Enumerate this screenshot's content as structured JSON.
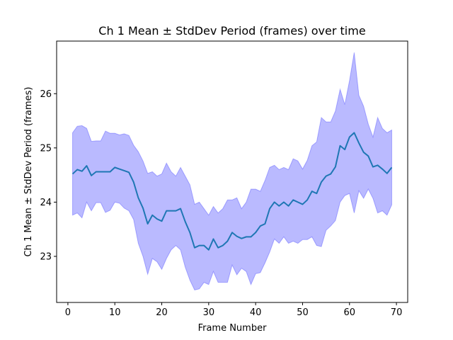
{
  "chart_data": {
    "type": "line",
    "title": "Ch 1 Mean ± StdDev Period (frames) over time",
    "xlabel": "Frame Number",
    "ylabel": "Ch 1 Mean ± StdDev Period (frames)",
    "xlim": [
      -2.4,
      72.4
    ],
    "ylim": [
      22.15,
      26.97
    ],
    "xticks": [
      0,
      10,
      20,
      30,
      40,
      50,
      60,
      70
    ],
    "yticks": [
      23,
      24,
      25,
      26
    ],
    "grid": false,
    "legend": "none",
    "colors": {
      "mean_line": "#1f77b4",
      "band_fill": "#0000ff",
      "band_opacity": 0.27
    },
    "x": [
      1,
      2,
      3,
      4,
      5,
      6,
      7,
      8,
      9,
      10,
      11,
      12,
      13,
      14,
      15,
      16,
      17,
      18,
      19,
      20,
      21,
      22,
      23,
      24,
      25,
      26,
      27,
      28,
      29,
      30,
      31,
      32,
      33,
      34,
      35,
      36,
      37,
      38,
      39,
      40,
      41,
      42,
      43,
      44,
      45,
      46,
      47,
      48,
      49,
      50,
      51,
      52,
      53,
      54,
      55,
      56,
      57,
      58,
      59,
      60,
      61,
      62,
      63,
      64,
      65,
      66,
      67,
      68,
      69
    ],
    "series": [
      {
        "role": "mean",
        "values": [
          24.52,
          24.6,
          24.57,
          24.67,
          24.49,
          24.56,
          24.56,
          24.56,
          24.56,
          24.64,
          24.61,
          24.58,
          24.55,
          24.37,
          24.08,
          23.89,
          23.6,
          23.76,
          23.69,
          23.65,
          23.84,
          23.84,
          23.84,
          23.88,
          23.64,
          23.44,
          23.16,
          23.2,
          23.2,
          23.12,
          23.32,
          23.16,
          23.2,
          23.28,
          23.44,
          23.37,
          23.33,
          23.36,
          23.36,
          23.44,
          23.56,
          23.6,
          23.88,
          24.0,
          23.93,
          24.0,
          23.93,
          24.04,
          24.0,
          23.96,
          24.04,
          24.2,
          24.16,
          24.37,
          24.48,
          24.52,
          24.65,
          25.04,
          24.97,
          25.2,
          25.28,
          25.09,
          24.92,
          24.85,
          24.65,
          24.68,
          24.61,
          24.53,
          24.64
        ]
      },
      {
        "role": "upper",
        "values": [
          25.28,
          25.4,
          25.41,
          25.36,
          25.12,
          25.13,
          25.13,
          25.31,
          25.27,
          25.27,
          25.24,
          25.26,
          25.23,
          25.05,
          24.93,
          24.76,
          24.53,
          24.56,
          24.48,
          24.52,
          24.72,
          24.56,
          24.48,
          24.64,
          24.48,
          24.32,
          23.96,
          24.0,
          23.88,
          23.76,
          23.92,
          23.8,
          23.88,
          24.04,
          24.04,
          24.08,
          23.88,
          24.0,
          24.24,
          24.24,
          24.2,
          24.4,
          24.64,
          24.68,
          24.6,
          24.64,
          24.6,
          24.8,
          24.76,
          24.61,
          24.77,
          25.04,
          25.11,
          25.56,
          25.48,
          25.48,
          25.68,
          26.08,
          25.8,
          26.24,
          26.76,
          25.97,
          25.77,
          25.44,
          25.2,
          25.56,
          25.36,
          25.28,
          25.33
        ]
      },
      {
        "role": "lower",
        "values": [
          23.76,
          23.8,
          23.71,
          24.0,
          23.84,
          23.99,
          23.99,
          23.81,
          23.85,
          24.0,
          23.98,
          23.89,
          23.84,
          23.68,
          23.24,
          23.0,
          22.67,
          22.96,
          22.9,
          22.76,
          22.96,
          23.12,
          23.2,
          23.12,
          22.8,
          22.56,
          22.38,
          22.4,
          22.52,
          22.48,
          22.72,
          22.52,
          22.52,
          22.52,
          22.84,
          22.66,
          22.78,
          22.72,
          22.48,
          22.68,
          22.7,
          22.88,
          23.08,
          23.32,
          23.24,
          23.36,
          23.24,
          23.28,
          23.24,
          23.31,
          23.31,
          23.36,
          23.2,
          23.18,
          23.48,
          23.56,
          23.66,
          24.0,
          24.12,
          24.16,
          23.8,
          24.21,
          24.07,
          24.24,
          24.07,
          23.8,
          23.84,
          23.76,
          23.95
        ]
      }
    ]
  }
}
